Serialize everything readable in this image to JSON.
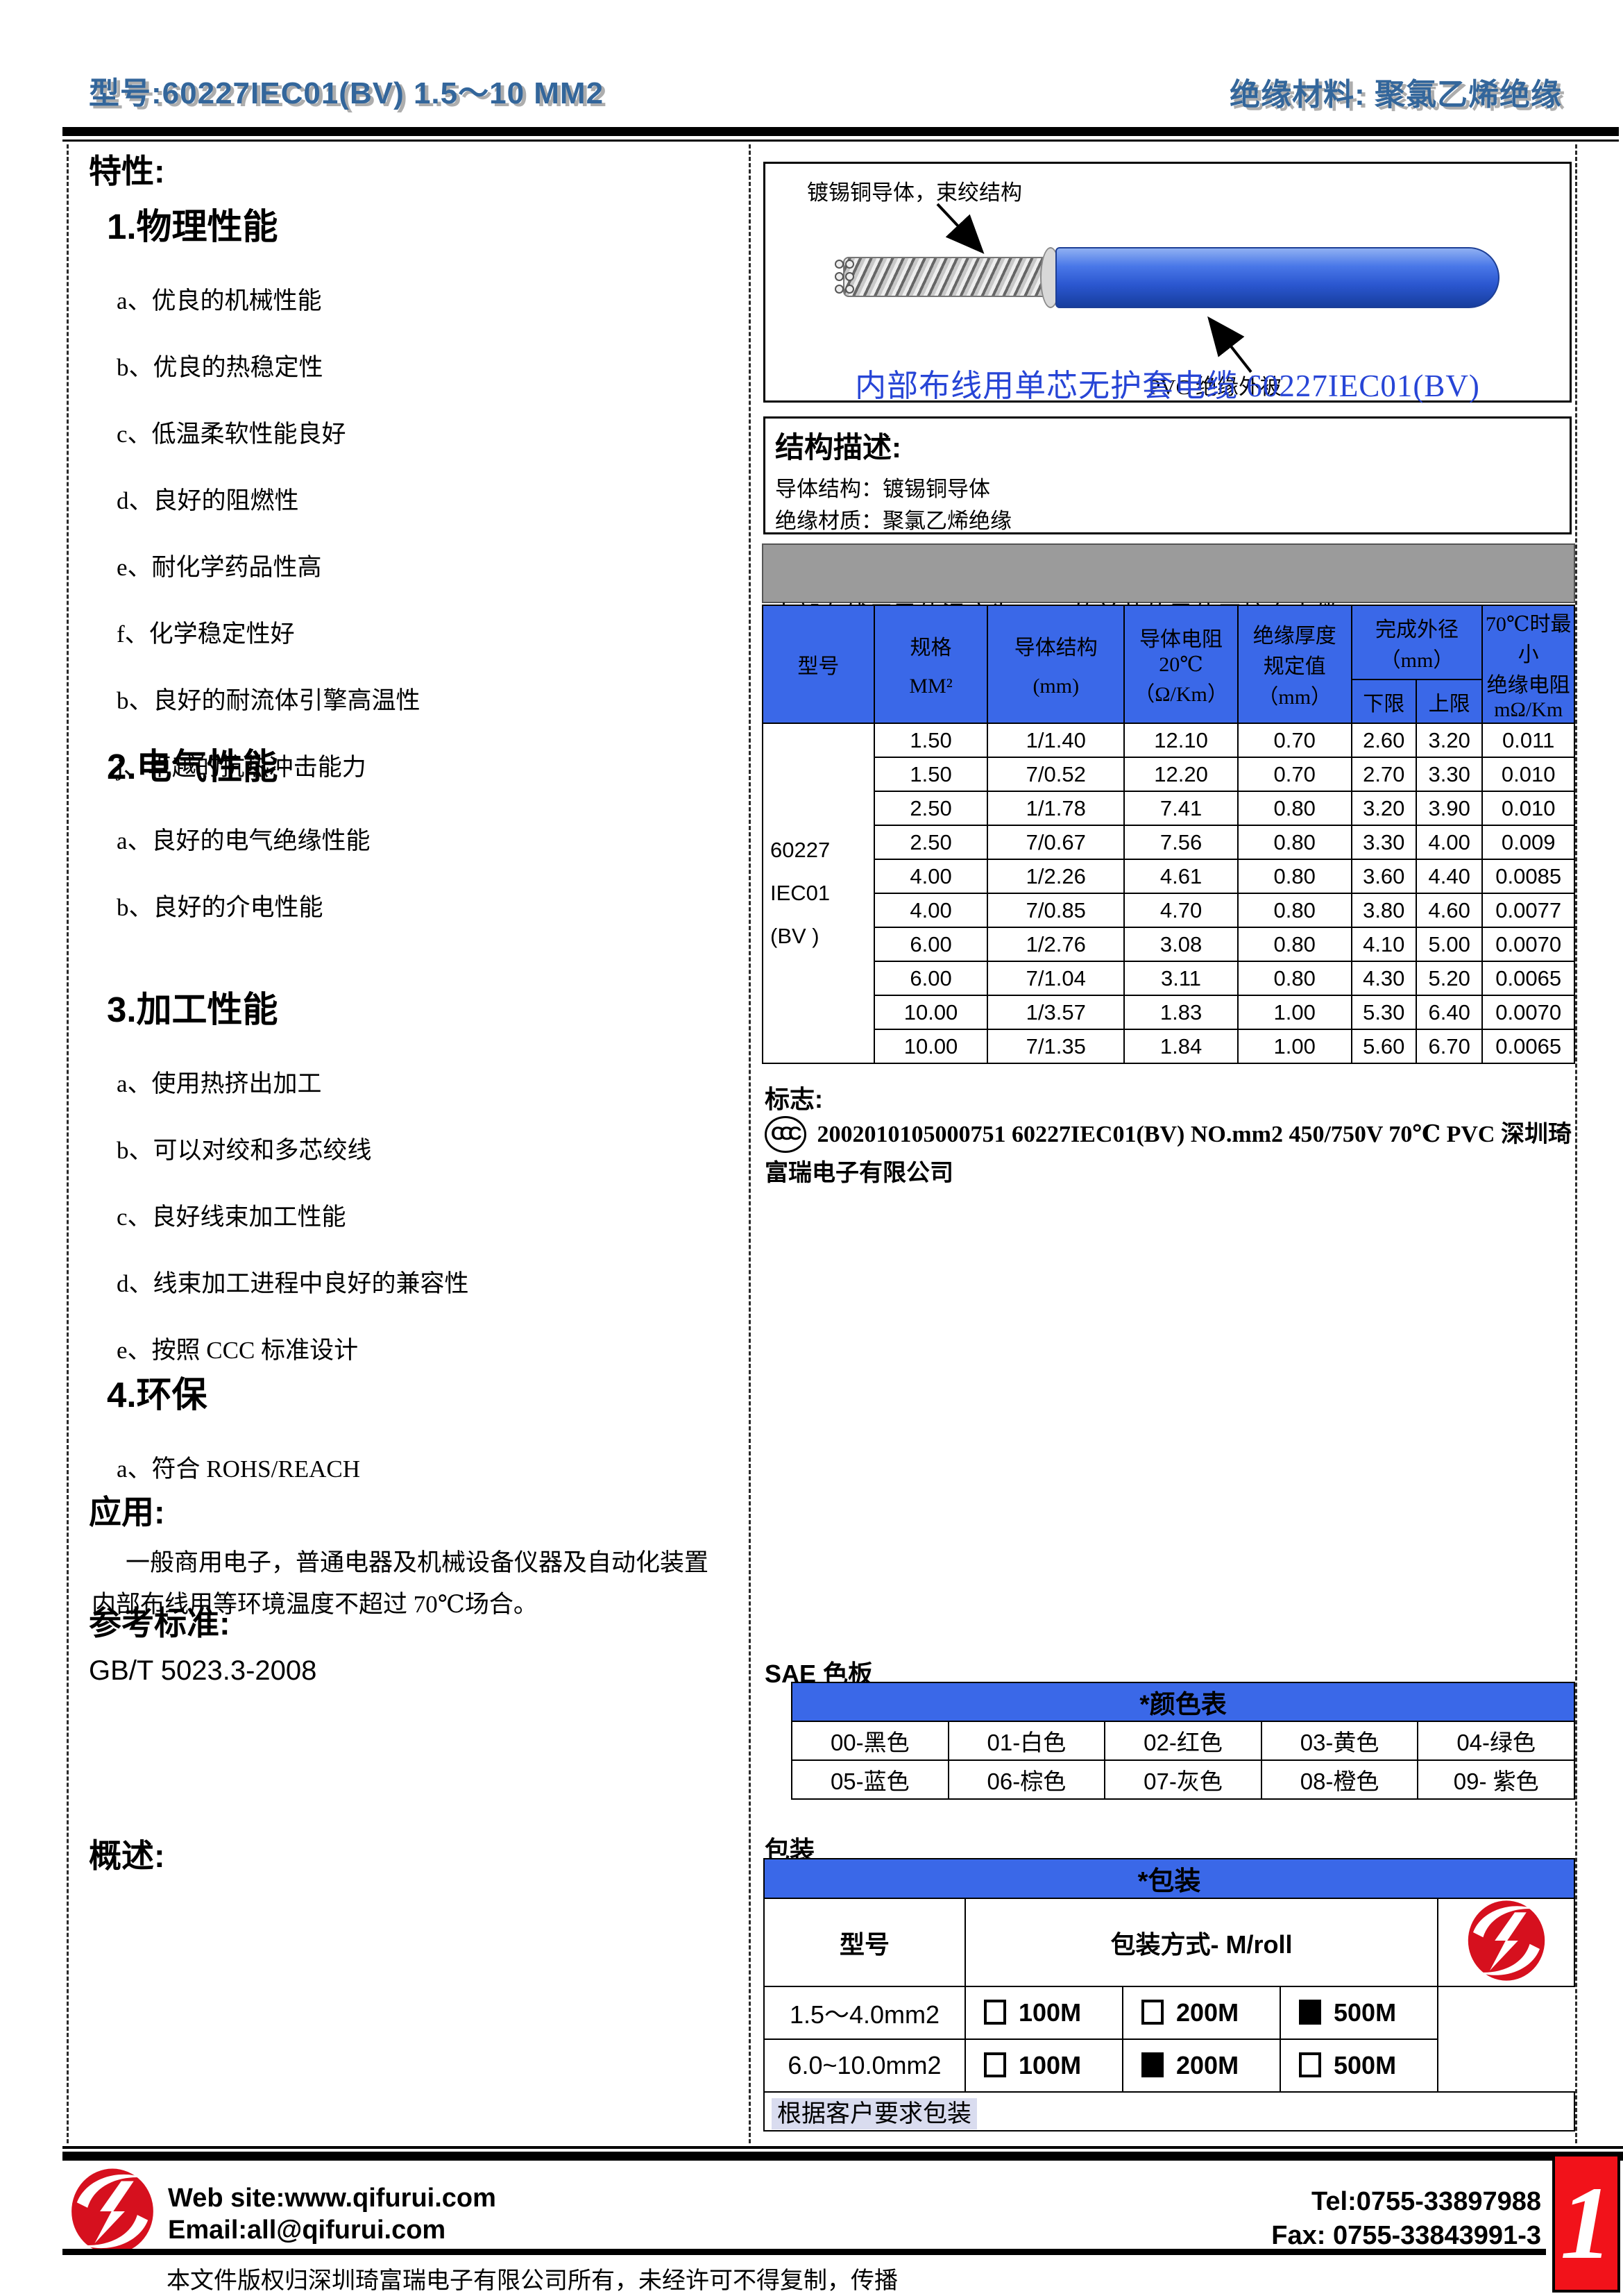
{
  "header": {
    "model_title": "型号:60227IEC01(BV) 1.5～10 MM2",
    "material_title": "绝缘材料: 聚氯乙烯绝缘"
  },
  "left": {
    "features_heading": "特性:",
    "sections": [
      {
        "title": "1.物理性能",
        "items": [
          "a、优良的机械性能",
          "b、优良的热稳定性",
          "c、低温柔软性能良好",
          "d、良好的阻燃性",
          "e、耐化学药品性高",
          "f、化学稳定性好",
          "b、良好的耐流体引擎高温性",
          "j、卓越的抗热冲击能力"
        ]
      },
      {
        "title": "2.电气性能",
        "items": [
          "a、良好的电气绝缘性能",
          "b、良好的介电性能"
        ]
      },
      {
        "title": "3.加工性能",
        "items": [
          "a、使用热挤出加工",
          "b、可以对绞和多芯绞线",
          "c、良好线束加工性能",
          "d、线束加工进程中良好的兼容性",
          "e、按照 CCC 标准设计"
        ]
      },
      {
        "title": "4.环保",
        "items": [
          "a、符合 ROHS/REACH"
        ]
      }
    ],
    "application_heading": "应用:",
    "application_text": "一般商用电子，普通电器及机械设备仪器及自动化装置内部布线用等环境温度不超过 70℃场合。",
    "reference_heading": "参考标准:",
    "reference_value": "GB/T 5023.3-2008",
    "overview_heading": "概述:"
  },
  "diagram": {
    "conductor_label": "镀锡铜导体，束绞结构",
    "jacket_label": "PVC 绝缘外被",
    "caption": "内部布线用单芯无护套电缆  60227IEC01(BV)"
  },
  "structure": {
    "heading": "结构描述:",
    "conductor_line": "导体结构：镀锡铜导体",
    "insulation_line": "绝缘材质：聚氯乙烯绝缘"
  },
  "spec_intro": {
    "line1": "内部布线用导体温度为 70℃的单芯软导体无护套电缆   60227IEC01(BV )",
    "line2": "额定温度:70℃   额定电压：: 450/750V"
  },
  "spec_table": {
    "col_model": "型号",
    "col_size_l1": "规格",
    "col_size_l2": "MM²",
    "col_conductor_l1": "导体结构",
    "col_conductor_l2": "(mm)",
    "col_resistance_l1": "导体电阻",
    "col_resistance_l2": "20℃",
    "col_resistance_l3": "（Ω/Km）",
    "col_thickness_l1": "绝缘厚度",
    "col_thickness_l2": "规定值",
    "col_thickness_l3": "（mm）",
    "col_od_l1": "完成外径",
    "col_od_l2": "（mm）",
    "col_od_lower": "下限",
    "col_od_upper": "上限",
    "col_ir_l1": "70℃时最小",
    "col_ir_l2": "绝缘电阻",
    "col_ir_l3": "mΩ/Km",
    "model_lines": [
      "60227",
      "IEC01",
      "(BV )"
    ],
    "rows": [
      [
        "1.50",
        "1/1.40",
        "12.10",
        "0.70",
        "2.60",
        "3.20",
        "0.011"
      ],
      [
        "1.50",
        "7/0.52",
        "12.20",
        "0.70",
        "2.70",
        "3.30",
        "0.010"
      ],
      [
        "2.50",
        "1/1.78",
        "7.41",
        "0.80",
        "3.20",
        "3.90",
        "0.010"
      ],
      [
        "2.50",
        "7/0.67",
        "7.56",
        "0.80",
        "3.30",
        "4.00",
        "0.009"
      ],
      [
        "4.00",
        "1/2.26",
        "4.61",
        "0.80",
        "3.60",
        "4.40",
        "0.0085"
      ],
      [
        "4.00",
        "7/0.85",
        "4.70",
        "0.80",
        "3.80",
        "4.60",
        "0.0077"
      ],
      [
        "6.00",
        "1/2.76",
        "3.08",
        "0.80",
        "4.10",
        "5.00",
        "0.0070"
      ],
      [
        "6.00",
        "7/1.04",
        "3.11",
        "0.80",
        "4.30",
        "5.20",
        "0.0065"
      ],
      [
        "10.00",
        "1/3.57",
        "1.83",
        "1.00",
        "5.30",
        "6.40",
        "0.0070"
      ],
      [
        "10.00",
        "7/1.35",
        "1.84",
        "1.00",
        "5.60",
        "6.70",
        "0.0065"
      ]
    ]
  },
  "mark": {
    "heading": "标志:",
    "ccc": "CCC",
    "text": "2002010105000751 60227IEC01(BV) NO.mm2 450/750V 70℃  PVC  深圳琦富瑞电子有限公司"
  },
  "sae": {
    "heading": "SAE 色板",
    "table_title": "*颜色表",
    "rows": [
      [
        "00-黑色",
        "01-白色",
        "02-红色",
        "03-黄色",
        "04-绿色"
      ],
      [
        "05-蓝色",
        "06-棕色",
        "07-灰色",
        "08-橙色",
        "09- 紫色"
      ]
    ]
  },
  "packaging": {
    "heading": "包装",
    "table_title": "*包装",
    "col_model": "型号",
    "col_method": "包装方式- M/roll",
    "rows": [
      {
        "model": "1.5～4.0mm2",
        "options": [
          {
            "label": "100M",
            "checked": false
          },
          {
            "label": "200M",
            "checked": false
          },
          {
            "label": "500M",
            "checked": true
          }
        ]
      },
      {
        "model": "6.0~10.0mm2",
        "options": [
          {
            "label": "100M",
            "checked": false
          },
          {
            "label": "200M",
            "checked": true
          },
          {
            "label": "500M",
            "checked": false
          }
        ]
      }
    ],
    "note": "根据客户要求包装"
  },
  "footer": {
    "website": "Web site:www.qifurui.com",
    "email": "Email:all@qifurui.com",
    "tel": "Tel:0755-33897988",
    "fax": "Fax: 0755-33843991-3",
    "copyright": "本文件版权归深圳琦富瑞电子有限公司所有，未经许可不得复制，传播",
    "page_number": "1"
  },
  "colors": {
    "table_header_blue": "#3A68E8",
    "caption_blue": "#2745D6",
    "title_blue": "#33669B",
    "page_red": "#F2121A",
    "gray_band": "#9B9B9B"
  }
}
